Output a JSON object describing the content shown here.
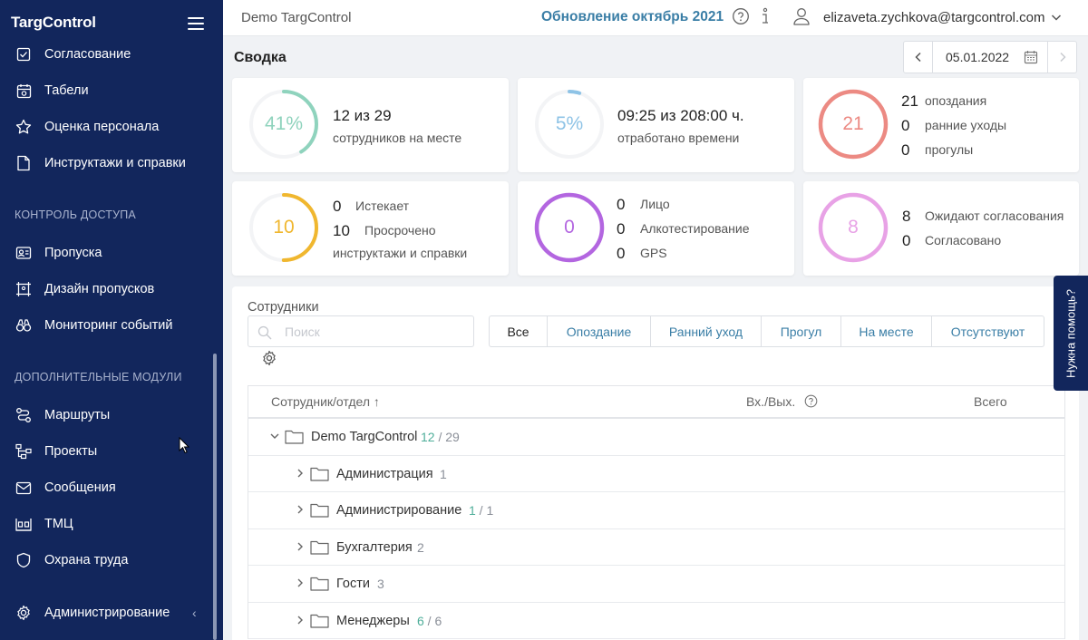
{
  "app": {
    "logo": "TargControl"
  },
  "sidebar": {
    "partial_item": "Согласование",
    "items": [
      {
        "label": "Табели",
        "icon": "timesheet-icon"
      },
      {
        "label": "Оценка персонала",
        "icon": "star-icon"
      },
      {
        "label": "Инструктажи и справки",
        "icon": "document-icon"
      }
    ],
    "section_access": "КОНТРОЛЬ ДОСТУПА",
    "access_items": [
      {
        "label": "Пропуска",
        "icon": "badge-icon"
      },
      {
        "label": "Дизайн пропусков",
        "icon": "badge-design-icon"
      },
      {
        "label": "Мониторинг событий",
        "icon": "monitoring-icon"
      }
    ],
    "section_modules": "ДОПОЛНИТЕЛЬНЫЕ МОДУЛИ",
    "module_items": [
      {
        "label": "Маршруты",
        "icon": "route-icon"
      },
      {
        "label": "Проекты",
        "icon": "projects-icon"
      },
      {
        "label": "Сообщения",
        "icon": "mail-icon"
      },
      {
        "label": "ТМЦ",
        "icon": "inventory-icon"
      },
      {
        "label": "Охрана труда",
        "icon": "shield-icon"
      }
    ],
    "admin_label": "Администрирование"
  },
  "topbar": {
    "company": "Demo TargControl",
    "update_link": "Обновление октябрь 2021",
    "user_email": "elizaveta.zychkova@targcontrol.com"
  },
  "summary": {
    "title": "Сводка",
    "date": "05.01.2022"
  },
  "cards": {
    "presence": {
      "ring_label": "41%",
      "percent": 41,
      "main": "12 из 29",
      "sub": "сотрудников на месте",
      "color": "#8fd3bd"
    },
    "worktime": {
      "ring_label": "5%",
      "percent": 5,
      "main": "09:25 из 208:00 ч.",
      "sub": "отработано времени",
      "color": "#8ec3e6"
    },
    "violations": {
      "ring_label": "21",
      "color": "#ec8a83",
      "rows": [
        {
          "value": "21",
          "label": "опоздания"
        },
        {
          "value": "0",
          "label": "ранние уходы"
        },
        {
          "value": "0",
          "label": "прогулы"
        }
      ]
    },
    "briefings": {
      "ring_label": "10",
      "percent": 50,
      "color": "#f0b72f",
      "rows": [
        {
          "value": "0",
          "label": "Истекает"
        },
        {
          "value": "10",
          "label": "Просрочено"
        }
      ],
      "sub": "инструктажи и справки"
    },
    "checks": {
      "ring_label": "0",
      "color": "#b366e0",
      "rows": [
        {
          "value": "0",
          "label": "Лицо"
        },
        {
          "value": "0",
          "label": "Алкотестирование"
        },
        {
          "value": "0",
          "label": "GPS"
        }
      ]
    },
    "approvals": {
      "ring_label": "8",
      "color": "#e8a2e6",
      "rows": [
        {
          "value": "8",
          "label": "Ожидают согласования"
        },
        {
          "value": "0",
          "label": "Согласовано"
        }
      ]
    }
  },
  "employees": {
    "title": "Сотрудники",
    "search_placeholder": "Поиск",
    "filters": [
      "Все",
      "Опоздание",
      "Ранний уход",
      "Прогул",
      "На месте",
      "Отсутствуют"
    ],
    "columns": {
      "employee": "Сотрудник/отдел ↑",
      "in_out": "Вх./Вых.",
      "total": "Всего"
    },
    "rows": [
      {
        "name": "Demo TargControl",
        "present": "12",
        "total": "29",
        "expanded": true,
        "level": 0
      },
      {
        "name": "Администрация",
        "present": "",
        "total": "1",
        "expanded": false,
        "level": 1
      },
      {
        "name": "Администрирование",
        "present": "1",
        "total": "1",
        "expanded": false,
        "level": 1
      },
      {
        "name": "Бухгалтерия",
        "present": "",
        "total": "2",
        "expanded": false,
        "level": 1
      },
      {
        "name": "Гости",
        "present": "",
        "total": "3",
        "expanded": false,
        "level": 1
      },
      {
        "name": "Менеджеры",
        "present": "6",
        "total": "6",
        "expanded": false,
        "level": 1
      }
    ]
  },
  "help_tab": "Нужна помощь?"
}
